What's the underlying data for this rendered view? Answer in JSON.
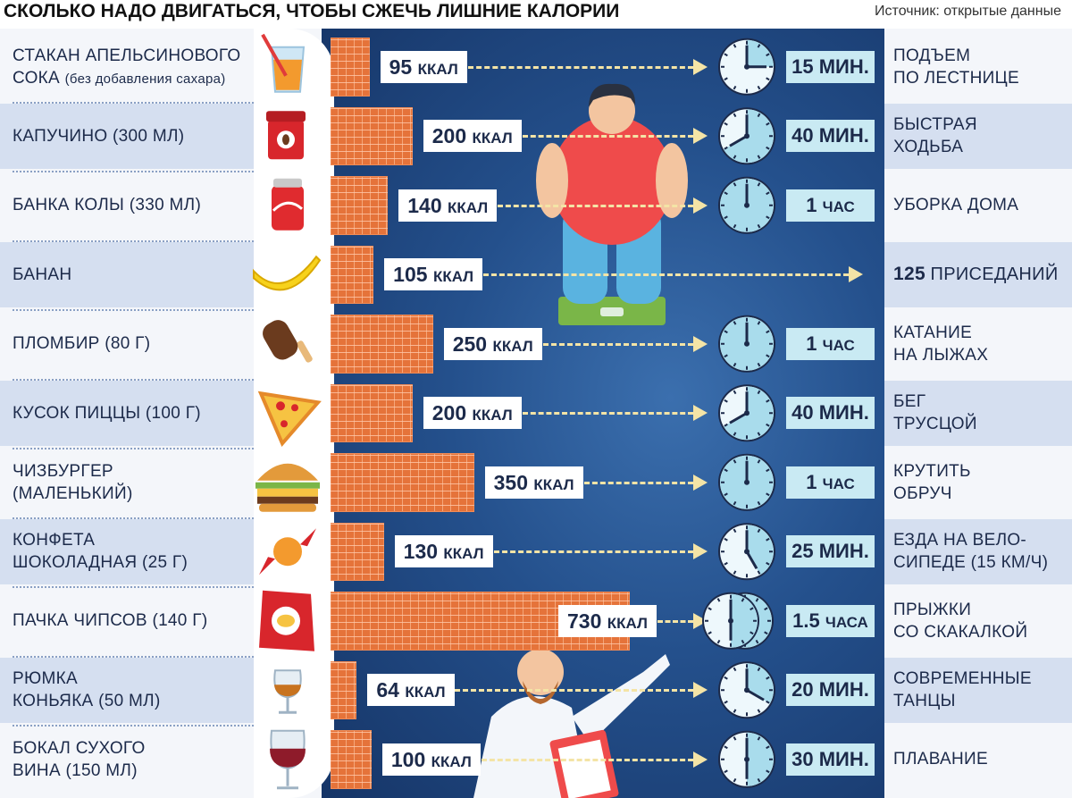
{
  "header": {
    "title": "СКОЛЬКО НАДО ДВИГАТЬСЯ, ЧТОБЫ СЖЕЧЬ ЛИШНИЕ КАЛОРИИ",
    "source": "Источник: открытые данные"
  },
  "chart_data": {
    "type": "bar",
    "title": "СКОЛЬКО НАДО ДВИГАТЬСЯ, ЧТОБЫ СЖЕЧЬ ЛИШНИЕ КАЛОРИИ",
    "unit": "ККАЛ",
    "xlim": [
      0,
      730
    ],
    "rows": [
      {
        "food": "СТАКАН АПЕЛЬСИНОВОГО",
        "food2": "СОКА",
        "food_note": "(без добавления сахара)",
        "kcal": 95,
        "kcal_label": "95",
        "time": "15 МИН.",
        "time_unit": "",
        "activity": [
          "ПОДЪЕМ",
          "ПО ЛЕСТНИЦЕ"
        ],
        "clock_min": 15,
        "icon": "juice-icon"
      },
      {
        "food": "КАПУЧИНО (300 МЛ)",
        "food2": "",
        "food_note": "",
        "kcal": 200,
        "kcal_label": "200",
        "time": "40 МИН.",
        "time_unit": "",
        "activity": [
          "БЫСТРАЯ",
          "ХОДЬБА"
        ],
        "clock_min": 40,
        "icon": "coffee-cup-icon"
      },
      {
        "food": "БАНКА КОЛЫ (330 МЛ)",
        "food2": "",
        "food_note": "",
        "kcal": 140,
        "kcal_label": "140",
        "time": "1",
        "time_unit": "ЧАС",
        "activity": [
          "УБОРКА ДОМА",
          ""
        ],
        "clock_min": 60,
        "icon": "soda-can-icon"
      },
      {
        "food": "БАНАН",
        "food2": "",
        "food_note": "",
        "kcal": 105,
        "kcal_label": "105",
        "time": "",
        "time_unit": "",
        "activity": [
          "125",
          "ПРИСЕДАНИЙ"
        ],
        "clock_min": null,
        "icon": "banana-icon"
      },
      {
        "food": "ПЛОМБИР (80 Г)",
        "food2": "",
        "food_note": "",
        "kcal": 250,
        "kcal_label": "250",
        "time": "1",
        "time_unit": "ЧАС",
        "activity": [
          "КАТАНИЕ",
          "НА ЛЫЖАХ"
        ],
        "clock_min": 60,
        "icon": "ice-cream-icon"
      },
      {
        "food": "КУСОК ПИЦЦЫ (100 Г)",
        "food2": "",
        "food_note": "",
        "kcal": 200,
        "kcal_label": "200",
        "time": "40 МИН.",
        "time_unit": "",
        "activity": [
          "БЕГ",
          "ТРУСЦОЙ"
        ],
        "clock_min": 40,
        "icon": "pizza-icon"
      },
      {
        "food": "ЧИЗБУРГЕР",
        "food2": "(МАЛЕНЬКИЙ)",
        "food_note": "",
        "kcal": 350,
        "kcal_label": "350",
        "time": "1",
        "time_unit": "ЧАС",
        "activity": [
          "КРУТИТЬ",
          "ОБРУЧ"
        ],
        "clock_min": 60,
        "icon": "burger-icon"
      },
      {
        "food": "КОНФЕТА",
        "food2": "ШОКОЛАДНАЯ (25 Г)",
        "food_note": "",
        "kcal": 130,
        "kcal_label": "130",
        "time": "25 МИН.",
        "time_unit": "",
        "activity": [
          "ЕЗДА НА ВЕЛО-",
          "СИПЕДЕ (15 КМ/Ч)"
        ],
        "clock_min": 25,
        "icon": "candy-icon"
      },
      {
        "food": "ПАЧКА ЧИПСОВ (140 Г)",
        "food2": "",
        "food_note": "",
        "kcal": 730,
        "kcal_label": "730",
        "time": "1.5",
        "time_unit": "ЧАСА",
        "activity": [
          "ПРЫЖКИ",
          "СО  СКАКАЛКОЙ"
        ],
        "clock_min": 90,
        "icon": "chips-icon"
      },
      {
        "food": "РЮМКА",
        "food2": "КОНЬЯКА (50 МЛ)",
        "food_note": "",
        "kcal": 64,
        "kcal_label": "64",
        "time": "20 МИН.",
        "time_unit": "",
        "activity": [
          "СОВРЕМЕННЫЕ",
          "ТАНЦЫ"
        ],
        "clock_min": 20,
        "icon": "cognac-glass-icon"
      },
      {
        "food": "БОКАЛ СУХОГО",
        "food2": "ВИНА (150 МЛ)",
        "food_note": "",
        "kcal": 100,
        "kcal_label": "100",
        "time": "30 МИН.",
        "time_unit": "",
        "activity": [
          "ПЛАВАНИЕ",
          ""
        ],
        "clock_min": 30,
        "icon": "wine-glass-icon"
      }
    ]
  },
  "labels": {
    "kcal_unit": "ККАЛ"
  },
  "colors": {
    "bar": "#e5733a",
    "center_bg": "#24508c",
    "band": "#d5dff0",
    "time_bg": "#c9eaf3",
    "dots": "#f4e4a6"
  }
}
